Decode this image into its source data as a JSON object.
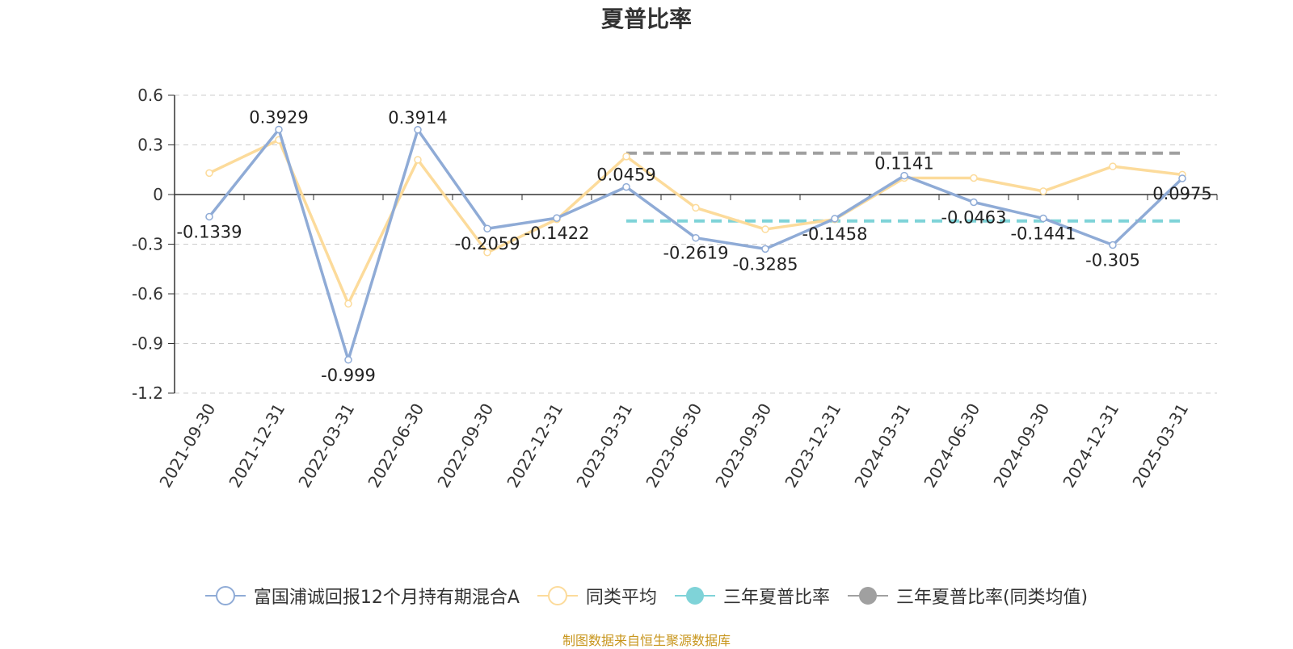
{
  "chart_data": {
    "type": "line",
    "title": "夏普比率",
    "categories": [
      "2021-09-30",
      "2021-12-31",
      "2022-03-31",
      "2022-06-30",
      "2022-09-30",
      "2022-12-31",
      "2023-03-31",
      "2023-06-30",
      "2023-09-30",
      "2023-12-31",
      "2024-03-31",
      "2024-06-30",
      "2024-09-30",
      "2024-12-31",
      "2025-03-31"
    ],
    "y_ticks": [
      "0.6",
      "0.3",
      "0",
      "-0.3",
      "-0.6",
      "-0.9",
      "-1.2"
    ],
    "ylim": [
      -1.2,
      0.6
    ],
    "grid": "horizontal-dashed",
    "legend_position": "bottom",
    "series": [
      {
        "name": "富国浦诚回报12个月持有期混合A",
        "color": "#8fabd6",
        "values": [
          -0.1339,
          0.3929,
          -0.999,
          0.3914,
          -0.2059,
          -0.1422,
          0.0459,
          -0.2619,
          -0.3285,
          -0.1458,
          0.1141,
          -0.0463,
          -0.1441,
          -0.305,
          0.0975
        ],
        "labels": [
          "-0.1339",
          "0.3929",
          "-0.999",
          "0.3914",
          "-0.2059",
          "-0.1422",
          "0.0459",
          "-0.2619",
          "-0.3285",
          "-0.1458",
          "0.1141",
          "-0.0463",
          "-0.1441",
          "-0.305",
          "0.0975"
        ]
      },
      {
        "name": "同类平均",
        "color": "#fcdb9b",
        "values": [
          0.13,
          0.33,
          -0.66,
          0.21,
          -0.35,
          -0.15,
          0.23,
          -0.08,
          -0.21,
          -0.15,
          0.1,
          0.1,
          0.02,
          0.17,
          0.12
        ]
      },
      {
        "name": "三年夏普比率",
        "color": "#7fd3d8",
        "style": "dashed",
        "x_range": [
          "2023-03-31",
          "2025-03-31"
        ],
        "value": -0.16
      },
      {
        "name": "三年夏普比率(同类均值)",
        "color": "#a0a0a0",
        "style": "dashed",
        "x_range": [
          "2023-03-31",
          "2025-03-31"
        ],
        "value": 0.25
      }
    ]
  },
  "source_note": "制图数据来自恒生聚源数据库"
}
